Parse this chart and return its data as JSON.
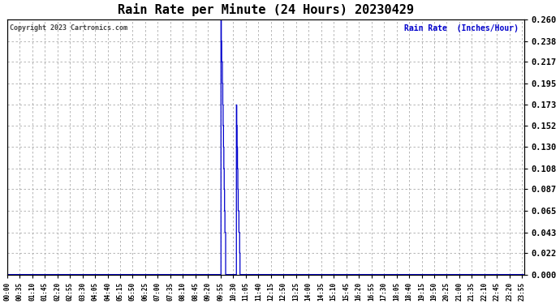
{
  "title": "Rain Rate per Minute (24 Hours) 20230429",
  "copyright_text": "Copyright 2023 Cartronics.com",
  "legend_label": "Rain Rate  (Inches/Hour)",
  "background_color": "#ffffff",
  "plot_bg_color": "#ffffff",
  "grid_color": "#aaaaaa",
  "line_color": "#0000cc",
  "title_color": "#000000",
  "ylim": [
    0.0,
    0.26
  ],
  "yticks": [
    0.0,
    0.022,
    0.043,
    0.065,
    0.087,
    0.108,
    0.13,
    0.152,
    0.173,
    0.195,
    0.217,
    0.238,
    0.26
  ],
  "total_minutes": 1440,
  "xtick_step": 35,
  "vgrid_step": 35,
  "rain_data": [
    [
      595,
      0.0
    ],
    [
      596,
      0.26
    ],
    [
      597,
      0.238
    ],
    [
      598,
      0.217
    ],
    [
      599,
      0.217
    ],
    [
      600,
      0.195
    ],
    [
      601,
      0.173
    ],
    [
      602,
      0.152
    ],
    [
      603,
      0.13
    ],
    [
      604,
      0.108
    ],
    [
      605,
      0.087
    ],
    [
      606,
      0.065
    ],
    [
      607,
      0.043
    ],
    [
      608,
      0.043
    ],
    [
      609,
      0.0
    ],
    [
      638,
      0.0
    ],
    [
      639,
      0.173
    ],
    [
      640,
      0.152
    ],
    [
      641,
      0.13
    ],
    [
      642,
      0.108
    ],
    [
      643,
      0.087
    ],
    [
      644,
      0.065
    ],
    [
      645,
      0.065
    ],
    [
      646,
      0.043
    ],
    [
      647,
      0.043
    ],
    [
      648,
      0.022
    ],
    [
      649,
      0.0
    ],
    [
      1439,
      0.0
    ]
  ]
}
